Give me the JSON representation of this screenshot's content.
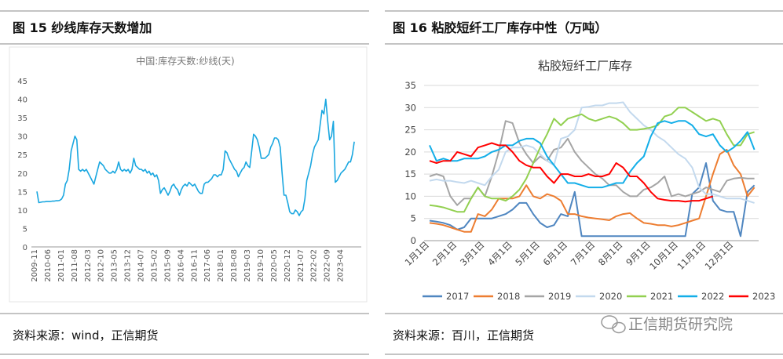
{
  "chart_data": [
    {
      "type": "line",
      "caption": "图 15  纱线库存天数增加",
      "title": "中国:库存天数:纱线(天)",
      "source": "资料来源：wind，正信期货",
      "color": "#1aa7e0",
      "categories": [
        "2009-11",
        null,
        null,
        null,
        null,
        null,
        null,
        "2010-06",
        null,
        null,
        null,
        null,
        null,
        null,
        "2011-01",
        null,
        null,
        null,
        null,
        null,
        null,
        "2011-08",
        null,
        null,
        null,
        null,
        null,
        null,
        "2012-03",
        null,
        null,
        null,
        null,
        null,
        null,
        "2012-10",
        null,
        null,
        null,
        null,
        null,
        null,
        "2013-05",
        null,
        null,
        null,
        null,
        null,
        null,
        "2013-12",
        null,
        null,
        null,
        null,
        null,
        null,
        "2014-07",
        null,
        null,
        null,
        null,
        null,
        null,
        "2015-02",
        null,
        null,
        null,
        null,
        null,
        null,
        "2015-09",
        null,
        null,
        null,
        null,
        null,
        null,
        "2016-04",
        null,
        null,
        null,
        null,
        null,
        null,
        "2016-11",
        null,
        null,
        null,
        null,
        null,
        null,
        "2017-06",
        null,
        null,
        null,
        null,
        null,
        null,
        "2018-01",
        null,
        null,
        null,
        null,
        null,
        null,
        "2018-08",
        null,
        null,
        null,
        null,
        null,
        null,
        "2019-03",
        null,
        null,
        null,
        null,
        null,
        null,
        "2019-10",
        null,
        null,
        null,
        null,
        null,
        null,
        "2020-05",
        null,
        null,
        null,
        null,
        null,
        null,
        "2020-12",
        null,
        null,
        null,
        null,
        null,
        null,
        "2021-07",
        null,
        null,
        null,
        null,
        null,
        null,
        "2022-02",
        null,
        null,
        null,
        null,
        null,
        null,
        "2022-09",
        null,
        null,
        null,
        null,
        null,
        null,
        "2023-04",
        null,
        null,
        null,
        null,
        null,
        null
      ],
      "values": [
        15,
        12,
        12.1,
        12.2,
        12.2,
        12.3,
        12.3,
        12.3,
        12.4,
        12.4,
        12.5,
        12.5,
        12.6,
        13,
        14,
        17,
        18,
        21,
        26,
        28,
        30,
        29,
        21,
        20.5,
        21,
        20.5,
        21,
        20,
        19,
        18,
        17,
        19,
        21,
        23,
        22.5,
        22,
        21,
        20.5,
        20,
        20,
        20.5,
        20,
        21,
        23,
        21,
        20.5,
        21,
        20.5,
        21,
        20,
        21,
        24,
        22,
        21.5,
        21,
        21,
        20.5,
        21,
        20,
        20.5,
        19.5,
        20,
        19,
        19.5,
        18,
        14.5,
        15.5,
        16,
        15,
        14,
        15,
        16.5,
        17,
        16,
        15.5,
        14,
        15.5,
        16.5,
        17,
        16.5,
        17.5,
        17,
        16.5,
        17,
        16,
        15,
        14.5,
        14.5,
        17,
        17.5,
        17.5,
        18,
        18.5,
        19.5,
        19.5,
        19,
        19.5,
        19.5,
        21,
        26,
        25.5,
        24,
        23,
        22,
        21,
        20.5,
        19,
        20,
        21,
        21.5,
        23,
        22,
        21.5,
        26,
        30.5,
        30,
        29,
        27,
        24,
        24,
        24,
        24.5,
        25,
        27,
        28,
        29.5,
        29.5,
        29,
        27,
        20,
        14,
        14,
        12,
        9.5,
        9,
        9,
        10,
        9.5,
        8.5,
        9.5,
        10,
        13,
        18,
        20,
        22,
        25,
        27,
        28,
        29,
        33,
        37,
        36,
        40,
        34,
        29,
        30,
        34,
        17.5,
        18,
        19,
        20,
        20.5,
        21,
        22,
        23,
        23,
        25,
        28.5
      ],
      "ylim": [
        0,
        45
      ],
      "yticks": [
        0,
        5,
        10,
        15,
        20,
        25,
        30,
        35,
        40,
        45
      ]
    },
    {
      "type": "line",
      "caption": "图 16   粘胶短纤工厂库存中性（万吨）",
      "title": "粘胶短纤工厂库存",
      "source": "资料来源：百川，正信期货",
      "grid": true,
      "legend": "bottom",
      "categories": [
        "1月1日",
        null,
        null,
        null,
        "2月1日",
        null,
        null,
        null,
        "3月1日",
        null,
        null,
        null,
        "4月1日",
        null,
        null,
        null,
        "5月1日",
        null,
        null,
        null,
        "6月1日",
        null,
        null,
        null,
        "7月1日",
        null,
        null,
        null,
        "8月1日",
        null,
        null,
        null,
        "9月1日",
        null,
        null,
        null,
        "10月1日",
        null,
        null,
        null,
        "11月1日",
        null,
        null,
        null,
        "12月1日",
        null,
        null,
        null
      ],
      "series": [
        {
          "name": "2017",
          "color": "#4f86c0",
          "values": [
            4.5,
            4.3,
            4,
            3.5,
            2.5,
            3,
            5,
            5,
            5,
            5,
            5.5,
            6,
            7,
            8.5,
            8.5,
            6,
            4,
            3,
            3.5,
            6,
            5.5,
            11,
            1,
            1,
            1,
            1,
            1,
            1,
            1,
            1,
            1,
            1,
            1,
            1,
            1,
            1,
            1,
            1,
            10.5,
            12,
            17.5,
            9,
            7,
            6.5,
            6.5,
            1,
            11,
            12.5
          ]
        },
        {
          "name": "2018",
          "color": "#ed7d31",
          "values": [
            4,
            3.8,
            3.5,
            3,
            2.5,
            2,
            2,
            6,
            5.5,
            7,
            9.5,
            9.5,
            9.5,
            10,
            12.5,
            10,
            9.5,
            10.5,
            10,
            9,
            6,
            6,
            5.5,
            5.2,
            5,
            4.8,
            4.6,
            5.5,
            6,
            6.2,
            5,
            4,
            3.8,
            3.5,
            3.5,
            3.2,
            3.5,
            4,
            4.5,
            5,
            10,
            15,
            19.5,
            20.5,
            17,
            15,
            10,
            12
          ]
        },
        {
          "name": "2019",
          "color": "#a5a5a5",
          "values": [
            14.5,
            15,
            14.5,
            10,
            8,
            9.5,
            9.5,
            12,
            10,
            14.5,
            20,
            27,
            26.5,
            22,
            19.5,
            17.5,
            19,
            18,
            20.5,
            21,
            23,
            20,
            18,
            16.5,
            15,
            14,
            12.5,
            12.5,
            11,
            10,
            10,
            11.5,
            12,
            13,
            14.5,
            10,
            10.5,
            10,
            10.5,
            11,
            12,
            11.5,
            11,
            13.5,
            14,
            14.2,
            14,
            14
          ]
        },
        {
          "name": "2020",
          "color": "#c3d9ee",
          "values": [
            13.5,
            13.8,
            13.5,
            13.5,
            13.2,
            13,
            13.5,
            13,
            12.5,
            14.5,
            16,
            20,
            21,
            21,
            21.5,
            21,
            19.5,
            18,
            17,
            23,
            23.5,
            25,
            30,
            30.2,
            30.5,
            30.5,
            31,
            31,
            31.2,
            29,
            27.5,
            26,
            25,
            23.5,
            22.5,
            21,
            19.5,
            18.5,
            16.5,
            12,
            10.5,
            10.5,
            10,
            9.5,
            9.5,
            9.5,
            9,
            8.5
          ]
        },
        {
          "name": "2021",
          "color": "#92d050",
          "values": [
            8,
            7.8,
            7.5,
            7,
            6.5,
            6.5,
            9.5,
            12,
            10,
            9.5,
            9.5,
            9,
            10,
            11.5,
            14,
            17.5,
            21,
            24,
            27.5,
            26,
            27.5,
            28,
            28.5,
            27.5,
            27,
            27.5,
            28,
            27.5,
            26.5,
            25,
            25,
            25.2,
            25.5,
            26,
            28,
            28.5,
            30,
            30,
            29,
            28,
            27,
            27.5,
            27,
            24,
            21.5,
            21.5,
            24,
            24.5
          ]
        },
        {
          "name": "2022",
          "color": "#13aee8",
          "values": [
            21.5,
            18,
            18.5,
            18,
            18,
            18.5,
            18.5,
            18.5,
            19,
            20,
            20.5,
            21.5,
            21.5,
            22.5,
            23,
            23,
            22,
            19,
            17,
            15,
            13,
            13,
            12.5,
            12,
            12,
            12,
            12.5,
            13,
            13,
            15.5,
            17.5,
            19,
            23.5,
            26.5,
            27,
            26.5,
            27,
            27,
            26,
            24,
            23.5,
            24,
            21.5,
            20,
            21,
            22.5,
            24.5,
            20.5
          ]
        },
        {
          "name": "2023",
          "color": "#ff0000",
          "values": [
            18,
            17.5,
            18,
            18,
            20,
            19.5,
            19,
            21,
            21.5,
            22,
            21.5,
            21.5,
            20,
            18,
            17,
            16.5,
            16.5,
            14.5,
            13,
            15,
            15,
            14.5,
            14.5,
            15,
            14.5,
            14.5,
            15,
            17.5,
            16.5,
            14.5,
            14.5,
            13,
            11,
            9.5,
            9.2,
            9,
            9,
            8.8,
            9,
            9,
            9.5,
            10,
            null,
            null,
            null,
            null,
            null,
            null
          ]
        }
      ],
      "ylim": [
        0,
        35
      ],
      "yticks": [
        0,
        5,
        10,
        15,
        20,
        25,
        30,
        35
      ]
    }
  ],
  "watermark": "正信期货研究院"
}
